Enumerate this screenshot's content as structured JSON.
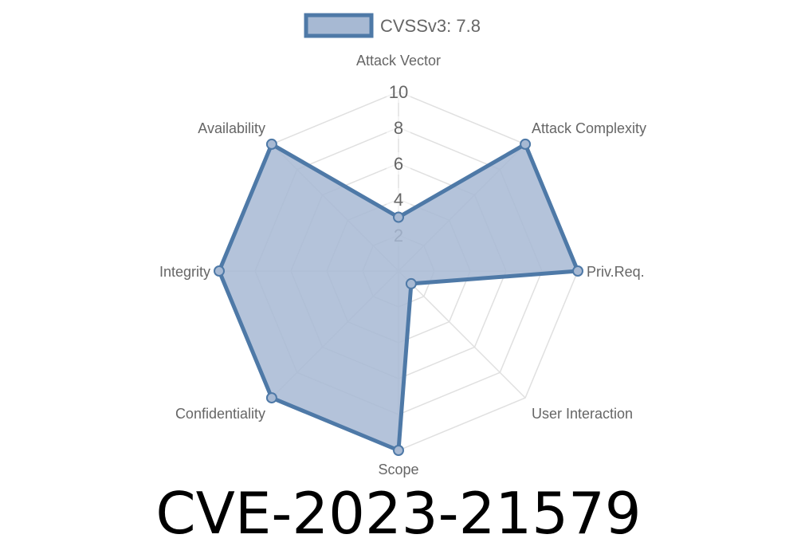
{
  "chart_data": {
    "type": "radar",
    "title": "CVE-2023-21579",
    "categories": [
      "Attack Vector",
      "Attack Complexity",
      "Priv.Req.",
      "User Interaction",
      "Scope",
      "Confidentiality",
      "Integrity",
      "Availability"
    ],
    "series": [
      {
        "name": "CVSSv3: 7.8",
        "values": [
          3,
          10,
          10,
          1,
          10,
          10,
          10,
          10
        ]
      }
    ],
    "rlim": [
      0,
      10
    ],
    "ticks": [
      "2",
      "4",
      "6",
      "8",
      "10"
    ],
    "grid": true,
    "legend": "top",
    "colors": {
      "line": "#4e79a7",
      "fill": "#a7b9d3",
      "grid": "#e0e0e0"
    }
  }
}
